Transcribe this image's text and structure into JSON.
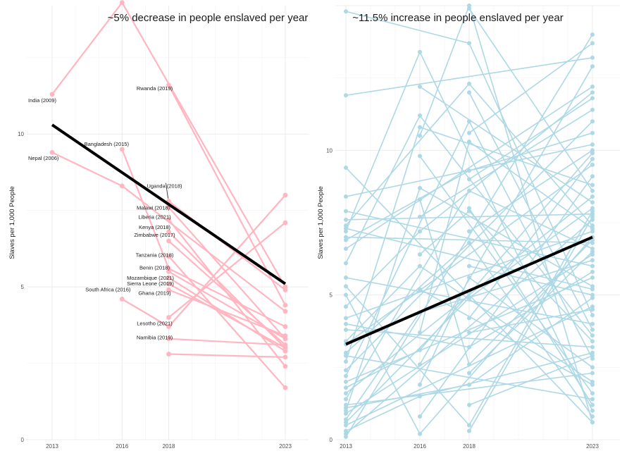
{
  "chart_data": [
    {
      "type": "line",
      "panel": "left",
      "title": "~5% decrease in people enslaved per year",
      "xlabel": "",
      "ylabel": "Slaves per 1,000 People",
      "x_ticks": [
        2013,
        2016,
        2018,
        2023
      ],
      "xlim": [
        2013,
        2023
      ],
      "y_ticks": [
        0,
        5,
        10
      ],
      "ylim": [
        0,
        14.2
      ],
      "series_color": "#ffb6c1",
      "trend_color": "#000000",
      "trend": {
        "x": [
          2013,
          2023
        ],
        "y": [
          10.3,
          5.1
        ]
      },
      "series": [
        {
          "name": "India (2009)",
          "x": [
            2013,
            2016,
            2023
          ],
          "y": [
            11.3,
            14.3,
            5.0
          ]
        },
        {
          "name": "Nepal (2006)",
          "x": [
            2013,
            2016,
            2023
          ],
          "y": [
            9.4,
            8.3,
            4.2
          ]
        },
        {
          "name": "Bangladesh (2015)",
          "x": [
            2016,
            2018,
            2023
          ],
          "y": [
            9.5,
            5.6,
            3.7
          ]
        },
        {
          "name": "Rwanda (2019)",
          "x": [
            2018,
            2023
          ],
          "y": [
            11.6,
            4.4
          ]
        },
        {
          "name": "Uganda (2018)",
          "x": [
            2018,
            2023
          ],
          "y": [
            7.8,
            4.9
          ]
        },
        {
          "name": "Malawi (2018)",
          "x": [
            2018,
            2023
          ],
          "y": [
            7.6,
            3.3
          ]
        },
        {
          "name": "Liberia (2021)",
          "x": [
            2018,
            2023
          ],
          "y": [
            7.2,
            2.4
          ]
        },
        {
          "name": "Kenya (2018)",
          "x": [
            2018,
            2023
          ],
          "y": [
            6.8,
            3.0
          ]
        },
        {
          "name": "Zimbabwe (2017)",
          "x": [
            2018,
            2023
          ],
          "y": [
            6.5,
            3.1
          ]
        },
        {
          "name": "Tanzania (2018)",
          "x": [
            2018,
            2023
          ],
          "y": [
            6.0,
            1.7
          ]
        },
        {
          "name": "Benin (2018)",
          "x": [
            2018,
            2023
          ],
          "y": [
            5.5,
            3.3
          ]
        },
        {
          "name": "Mozambique (2021)",
          "x": [
            2018,
            2023
          ],
          "y": [
            5.3,
            2.9
          ]
        },
        {
          "name": "Sierra Leone (2019)",
          "x": [
            2018,
            2023
          ],
          "y": [
            5.1,
            3.0
          ]
        },
        {
          "name": "Ghana (2019)",
          "x": [
            2018,
            2023
          ],
          "y": [
            4.9,
            3.4
          ]
        },
        {
          "name": "South Africa (2016)",
          "x": [
            2016,
            2018,
            2023
          ],
          "y": [
            4.6,
            3.7,
            8.0
          ]
        },
        {
          "name": "Lesotho (2021)",
          "x": [
            2018,
            2023
          ],
          "y": [
            4.0,
            7.1
          ]
        },
        {
          "name": "Namibia (2019)",
          "x": [
            2018,
            2023
          ],
          "y": [
            2.8,
            2.7
          ]
        },
        {
          "name": "",
          "x": [
            2018,
            2023
          ],
          "y": [
            3.3,
            3.1
          ]
        }
      ],
      "annotations": [
        {
          "text": "India (2009)",
          "x": 2013,
          "y": 11.3,
          "anchor": "left"
        },
        {
          "text": "Nepal (2006)",
          "x": 2013,
          "y": 9.4,
          "anchor": "left"
        },
        {
          "text": "Rwanda (2019)",
          "x": 2018,
          "y": 11.6,
          "anchor": "center"
        },
        {
          "text": "Bangladesh (2015)",
          "x": 2016,
          "y": 9.5,
          "anchor": "center"
        },
        {
          "text": "Uganda (2018)",
          "x": 2018,
          "y": 7.8,
          "anchor": "center"
        },
        {
          "text": "Malawi (2018)",
          "x": 2018,
          "y": 7.6,
          "anchor": "center"
        },
        {
          "text": "Liberia (2021)",
          "x": 2018,
          "y": 7.2,
          "anchor": "center"
        },
        {
          "text": "Kenya (2018)",
          "x": 2018,
          "y": 6.8,
          "anchor": "center"
        },
        {
          "text": "Zimbabwe (2017)",
          "x": 2018,
          "y": 6.5,
          "anchor": "center"
        },
        {
          "text": "Tanzania (2018)",
          "x": 2018,
          "y": 6.0,
          "anchor": "center"
        },
        {
          "text": "Benin (2018)",
          "x": 2018,
          "y": 5.5,
          "anchor": "center"
        },
        {
          "text": "Mozambique (2021)",
          "x": 2018,
          "y": 5.3,
          "anchor": "center"
        },
        {
          "text": "Sierra Leone (2019)",
          "x": 2018,
          "y": 5.1,
          "anchor": "center"
        },
        {
          "text": "Ghana (2019)",
          "x": 2018,
          "y": 4.9,
          "anchor": "center"
        },
        {
          "text": "South Africa (2016)",
          "x": 2016,
          "y": 4.6,
          "anchor": "center"
        },
        {
          "text": "Lesotho (2021)",
          "x": 2018,
          "y": 4.0,
          "anchor": "center"
        },
        {
          "text": "Namibia (2019)",
          "x": 2018,
          "y": 2.8,
          "anchor": "center"
        }
      ]
    },
    {
      "type": "line",
      "panel": "right",
      "title": "~11.5% increase in people enslaved per year",
      "xlabel": "",
      "ylabel": "Slaves per 1,000 People",
      "x_ticks": [
        2013,
        2016,
        2018,
        2023
      ],
      "xlim": [
        2013,
        2023
      ],
      "y_ticks": [
        0,
        5,
        10
      ],
      "ylim": [
        0,
        15.0
      ],
      "series_color": "#add8e6",
      "trend_color": "#000000",
      "trend": {
        "x": [
          2013,
          2023
        ],
        "y": [
          3.3,
          7.0
        ]
      },
      "series": [
        {
          "x": [
            2013,
            2023
          ],
          "y": [
            11.9,
            13.2
          ]
        },
        {
          "x": [
            2013,
            2023
          ],
          "y": [
            9.4,
            0.6
          ]
        },
        {
          "x": [
            2013,
            2023
          ],
          "y": [
            8.4,
            10.2
          ]
        },
        {
          "x": [
            2013,
            2023
          ],
          "y": [
            7.9,
            6.0
          ]
        },
        {
          "x": [
            2013,
            2023
          ],
          "y": [
            7.6,
            7.8
          ]
        },
        {
          "x": [
            2013,
            2023
          ],
          "y": [
            7.3,
            5.2
          ]
        },
        {
          "x": [
            2013,
            2023
          ],
          "y": [
            7.0,
            6.8
          ]
        },
        {
          "x": [
            2013,
            2023
          ],
          "y": [
            6.6,
            12.2
          ]
        },
        {
          "x": [
            2013,
            2023
          ],
          "y": [
            5.6,
            4.0
          ]
        },
        {
          "x": [
            2013,
            2023
          ],
          "y": [
            4.2,
            7.2
          ]
        },
        {
          "x": [
            2013,
            2023
          ],
          "y": [
            3.8,
            3.2
          ]
        },
        {
          "x": [
            2013,
            2023
          ],
          "y": [
            3.3,
            9.5
          ]
        },
        {
          "x": [
            2013,
            2023
          ],
          "y": [
            2.9,
            1.4
          ]
        },
        {
          "x": [
            2013,
            2023
          ],
          "y": [
            2.4,
            11.0
          ]
        },
        {
          "x": [
            2013,
            2023
          ],
          "y": [
            2.0,
            5.6
          ]
        },
        {
          "x": [
            2013,
            2023
          ],
          "y": [
            1.6,
            8.4
          ]
        },
        {
          "x": [
            2013,
            2023
          ],
          "y": [
            1.2,
            2.3
          ]
        },
        {
          "x": [
            2013,
            2023
          ],
          "y": [
            0.9,
            6.4
          ]
        },
        {
          "x": [
            2013,
            2023
          ],
          "y": [
            0.5,
            4.6
          ]
        },
        {
          "x": [
            2013,
            2023
          ],
          "y": [
            0.2,
            7.6
          ]
        },
        {
          "x": [
            2013,
            2023
          ],
          "y": [
            0.1,
            14.0
          ]
        },
        {
          "x": [
            2013,
            2016,
            2023
          ],
          "y": [
            7.2,
            13.4,
            1.0
          ]
        },
        {
          "x": [
            2013,
            2016,
            2023
          ],
          "y": [
            6.1,
            11.2,
            3.6
          ]
        },
        {
          "x": [
            2013,
            2016,
            2023
          ],
          "y": [
            2.7,
            10.8,
            8.8
          ]
        },
        {
          "x": [
            2013,
            2016,
            2023
          ],
          "y": [
            1.0,
            8.7,
            5.3
          ]
        },
        {
          "x": [
            2013,
            2016,
            2023
          ],
          "y": [
            4.6,
            7.2,
            12.0
          ]
        },
        {
          "x": [
            2013,
            2016,
            2023
          ],
          "y": [
            3.4,
            6.0,
            2.0
          ]
        },
        {
          "x": [
            2013,
            2016,
            2023
          ],
          "y": [
            0.7,
            4.4,
            6.2
          ]
        },
        {
          "x": [
            2013,
            2016,
            2023
          ],
          "y": [
            1.8,
            3.1,
            9.9
          ]
        },
        {
          "x": [
            2013,
            2016,
            2023
          ],
          "y": [
            0.3,
            1.5,
            3.0
          ]
        },
        {
          "x": [
            2013,
            2016,
            2023
          ],
          "y": [
            5.0,
            0.2,
            7.0
          ]
        },
        {
          "x": [
            2013,
            2018,
            2023
          ],
          "y": [
            14.8,
            13.7,
            4.3
          ]
        },
        {
          "x": [
            2013,
            2018,
            2023
          ],
          "y": [
            7.4,
            12.3,
            7.4
          ]
        },
        {
          "x": [
            2013,
            2018,
            2023
          ],
          "y": [
            2.2,
            11.0,
            2.8
          ]
        },
        {
          "x": [
            2013,
            2018,
            2023
          ],
          "y": [
            6.9,
            9.3,
            10.6
          ]
        },
        {
          "x": [
            2013,
            2018,
            2023
          ],
          "y": [
            1.4,
            8.6,
            6.6
          ]
        },
        {
          "x": [
            2013,
            2018,
            2023
          ],
          "y": [
            3.0,
            6.8,
            0.8
          ]
        },
        {
          "x": [
            2013,
            2018,
            2023
          ],
          "y": [
            0.6,
            4.9,
            8.0
          ]
        },
        {
          "x": [
            2013,
            2018,
            2023
          ],
          "y": [
            4.0,
            3.2,
            5.8
          ]
        },
        {
          "x": [
            2013,
            2018,
            2023
          ],
          "y": [
            1.1,
            1.9,
            4.9
          ]
        },
        {
          "x": [
            2013,
            2018,
            2023
          ],
          "y": [
            5.3,
            0.5,
            7.9
          ]
        },
        {
          "x": [
            2016,
            2023
          ],
          "y": [
            9.8,
            1.6
          ]
        },
        {
          "x": [
            2016,
            2023
          ],
          "y": [
            7.7,
            11.4
          ]
        },
        {
          "x": [
            2016,
            2023
          ],
          "y": [
            5.2,
            1.9
          ]
        },
        {
          "x": [
            2016,
            2023
          ],
          "y": [
            2.6,
            12.9
          ]
        },
        {
          "x": [
            2016,
            2023
          ],
          "y": [
            12.2,
            8.2
          ]
        },
        {
          "x": [
            2016,
            2023
          ],
          "y": [
            0.8,
            9.1
          ]
        },
        {
          "x": [
            2016,
            2018,
            2023
          ],
          "y": [
            10.5,
            15.0,
            0.6
          ]
        },
        {
          "x": [
            2016,
            2018,
            2023
          ],
          "y": [
            6.4,
            7.9,
            3.4
          ]
        },
        {
          "x": [
            2016,
            2018,
            2023
          ],
          "y": [
            3.7,
            10.3,
            7.3
          ]
        },
        {
          "x": [
            2016,
            2018,
            2023
          ],
          "y": [
            1.9,
            5.6,
            2.5
          ]
        },
        {
          "x": [
            2016,
            2018,
            2023
          ],
          "y": [
            8.3,
            2.6,
            6.9
          ]
        },
        {
          "x": [
            2018,
            2023
          ],
          "y": [
            12.0,
            3.8
          ]
        },
        {
          "x": [
            2018,
            2023
          ],
          "y": [
            10.6,
            13.7
          ]
        },
        {
          "x": [
            2018,
            2023
          ],
          "y": [
            8.0,
            1.2
          ]
        },
        {
          "x": [
            2018,
            2023
          ],
          "y": [
            7.2,
            10.0
          ]
        },
        {
          "x": [
            2018,
            2023
          ],
          "y": [
            6.0,
            5.0
          ]
        },
        {
          "x": [
            2018,
            2023
          ],
          "y": [
            4.2,
            9.7
          ]
        },
        {
          "x": [
            2018,
            2023
          ],
          "y": [
            3.7,
            4.5
          ]
        },
        {
          "x": [
            2018,
            2023
          ],
          "y": [
            2.3,
            6.5
          ]
        },
        {
          "x": [
            2018,
            2023
          ],
          "y": [
            1.2,
            2.9
          ]
        },
        {
          "x": [
            2018,
            2023
          ],
          "y": [
            0.3,
            7.7
          ]
        },
        {
          "x": [
            2018,
            2023
          ],
          "y": [
            14.9,
            8.6
          ]
        },
        {
          "x": [
            2018,
            2023
          ],
          "y": [
            9.0,
            11.8
          ]
        }
      ]
    }
  ]
}
